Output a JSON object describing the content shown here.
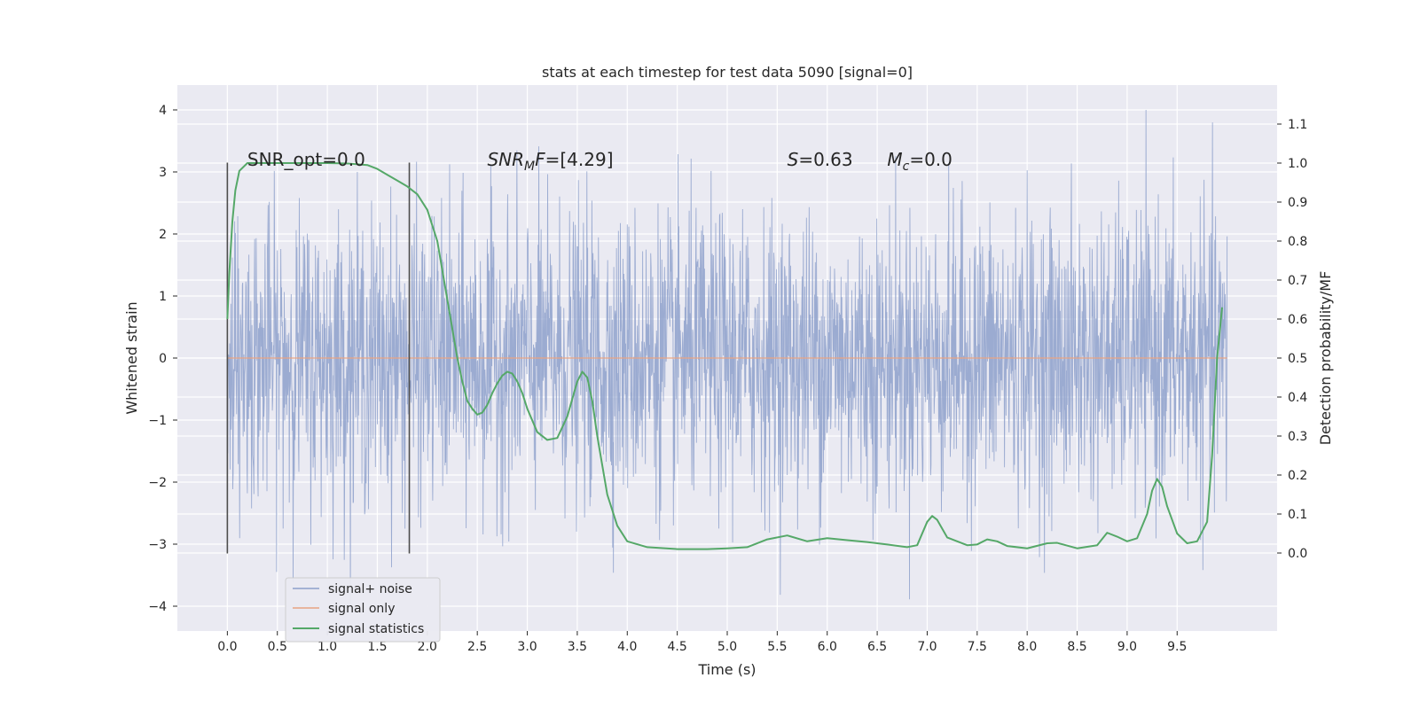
{
  "chart_data": {
    "type": "line",
    "title": "stats at each timestep for test data 5090 [signal=0]",
    "xlabel": "Time (s)",
    "ylabel": "Whitened strain",
    "y2label": "Detection probability/MF",
    "xlim": [
      -0.5,
      10.5
    ],
    "ylim": [
      -4.4,
      4.4
    ],
    "y2lim": [
      -0.2,
      1.2
    ],
    "xticks": [
      0.0,
      0.5,
      1.0,
      1.5,
      2.0,
      2.5,
      3.0,
      3.5,
      4.0,
      4.5,
      5.0,
      5.5,
      6.0,
      6.5,
      7.0,
      7.5,
      8.0,
      8.5,
      9.0,
      9.5
    ],
    "xtick_labels": [
      "0.0",
      "0.5",
      "1.0",
      "1.5",
      "2.0",
      "2.5",
      "3.0",
      "3.5",
      "4.0",
      "4.5",
      "5.0",
      "5.5",
      "6.0",
      "6.5",
      "7.0",
      "7.5",
      "8.0",
      "8.5",
      "9.0",
      "9.5"
    ],
    "yticks": [
      -4,
      -3,
      -2,
      -1,
      0,
      1,
      2,
      3,
      4
    ],
    "ytick_labels": [
      "−4",
      "−3",
      "−2",
      "−1",
      "0",
      "1",
      "2",
      "3",
      "4"
    ],
    "y2ticks": [
      0.0,
      0.1,
      0.2,
      0.3,
      0.4,
      0.5,
      0.6,
      0.7,
      0.8,
      0.9,
      1.0,
      1.1
    ],
    "y2tick_labels": [
      "0.0",
      "0.1",
      "0.2",
      "0.3",
      "0.4",
      "0.5",
      "0.6",
      "0.7",
      "0.8",
      "0.9",
      "1.0",
      "1.1"
    ],
    "grid": true,
    "legend_position": "lower-left",
    "colors": {
      "noise": "#8da0cb",
      "signal": "#e8a382",
      "stats": "#55a868",
      "vline": "#4d4d4d",
      "background": "#eaeaf2",
      "grid": "#ffffff"
    },
    "annotations": [
      {
        "text": "SNR_opt=0.0",
        "x": 0.2,
        "y": 3.2
      },
      {
        "main": "SNR",
        "sub": "M",
        "rest": "F=[4.29]",
        "x": 2.6,
        "y": 3.2
      },
      {
        "main": "S",
        "sub": "",
        "rest": "=0.63",
        "x": 5.6,
        "y": 3.2
      },
      {
        "main": "M",
        "sub": "c",
        "rest": "=0.0",
        "x": 6.6,
        "y": 3.2
      }
    ],
    "vlines": [
      {
        "x": 0.0,
        "ymin": -3.15,
        "ymax": 3.15
      },
      {
        "x": 1.82,
        "ymin": -3.15,
        "ymax": 3.15
      }
    ],
    "series": [
      {
        "name": "signal+ noise",
        "x_range": [
          0.0,
          10.0
        ],
        "noise_envelope": {
          "typical": 1.3,
          "peak_max": 4.0,
          "peak_min": -4.05
        }
      },
      {
        "name": "signal only",
        "x": [
          0.0,
          10.0
        ],
        "y": [
          0.0,
          0.0
        ]
      },
      {
        "name": "signal statistics",
        "axis": "right",
        "x": [
          0.0,
          0.02,
          0.05,
          0.08,
          0.12,
          0.2,
          0.3,
          0.5,
          0.8,
          1.0,
          1.2,
          1.4,
          1.5,
          1.6,
          1.7,
          1.8,
          1.9,
          2.0,
          2.1,
          2.2,
          2.3,
          2.35,
          2.4,
          2.45,
          2.5,
          2.55,
          2.6,
          2.65,
          2.7,
          2.75,
          2.8,
          2.85,
          2.9,
          2.95,
          3.0,
          3.1,
          3.2,
          3.3,
          3.4,
          3.5,
          3.55,
          3.6,
          3.65,
          3.7,
          3.8,
          3.9,
          4.0,
          4.2,
          4.5,
          4.8,
          5.0,
          5.2,
          5.4,
          5.6,
          5.8,
          6.0,
          6.2,
          6.4,
          6.6,
          6.8,
          6.9,
          7.0,
          7.05,
          7.1,
          7.2,
          7.4,
          7.5,
          7.6,
          7.7,
          7.8,
          8.0,
          8.2,
          8.3,
          8.5,
          8.7,
          8.8,
          8.9,
          9.0,
          9.1,
          9.2,
          9.25,
          9.3,
          9.35,
          9.4,
          9.5,
          9.6,
          9.7,
          9.8,
          9.85,
          9.9,
          9.95
        ],
        "y": [
          0.6,
          0.72,
          0.85,
          0.93,
          0.98,
          1.0,
          1.0,
          1.0,
          1.0,
          1.0,
          0.999,
          0.995,
          0.985,
          0.97,
          0.955,
          0.94,
          0.92,
          0.88,
          0.8,
          0.65,
          0.5,
          0.44,
          0.39,
          0.37,
          0.355,
          0.36,
          0.38,
          0.41,
          0.435,
          0.455,
          0.465,
          0.46,
          0.44,
          0.41,
          0.37,
          0.31,
          0.29,
          0.295,
          0.35,
          0.44,
          0.465,
          0.45,
          0.39,
          0.3,
          0.15,
          0.07,
          0.03,
          0.015,
          0.01,
          0.01,
          0.012,
          0.015,
          0.035,
          0.045,
          0.03,
          0.038,
          0.033,
          0.028,
          0.022,
          0.015,
          0.02,
          0.08,
          0.095,
          0.085,
          0.04,
          0.02,
          0.022,
          0.035,
          0.03,
          0.018,
          0.012,
          0.025,
          0.026,
          0.012,
          0.02,
          0.052,
          0.042,
          0.03,
          0.038,
          0.1,
          0.16,
          0.19,
          0.17,
          0.12,
          0.05,
          0.025,
          0.03,
          0.08,
          0.25,
          0.5,
          0.63
        ]
      }
    ]
  }
}
